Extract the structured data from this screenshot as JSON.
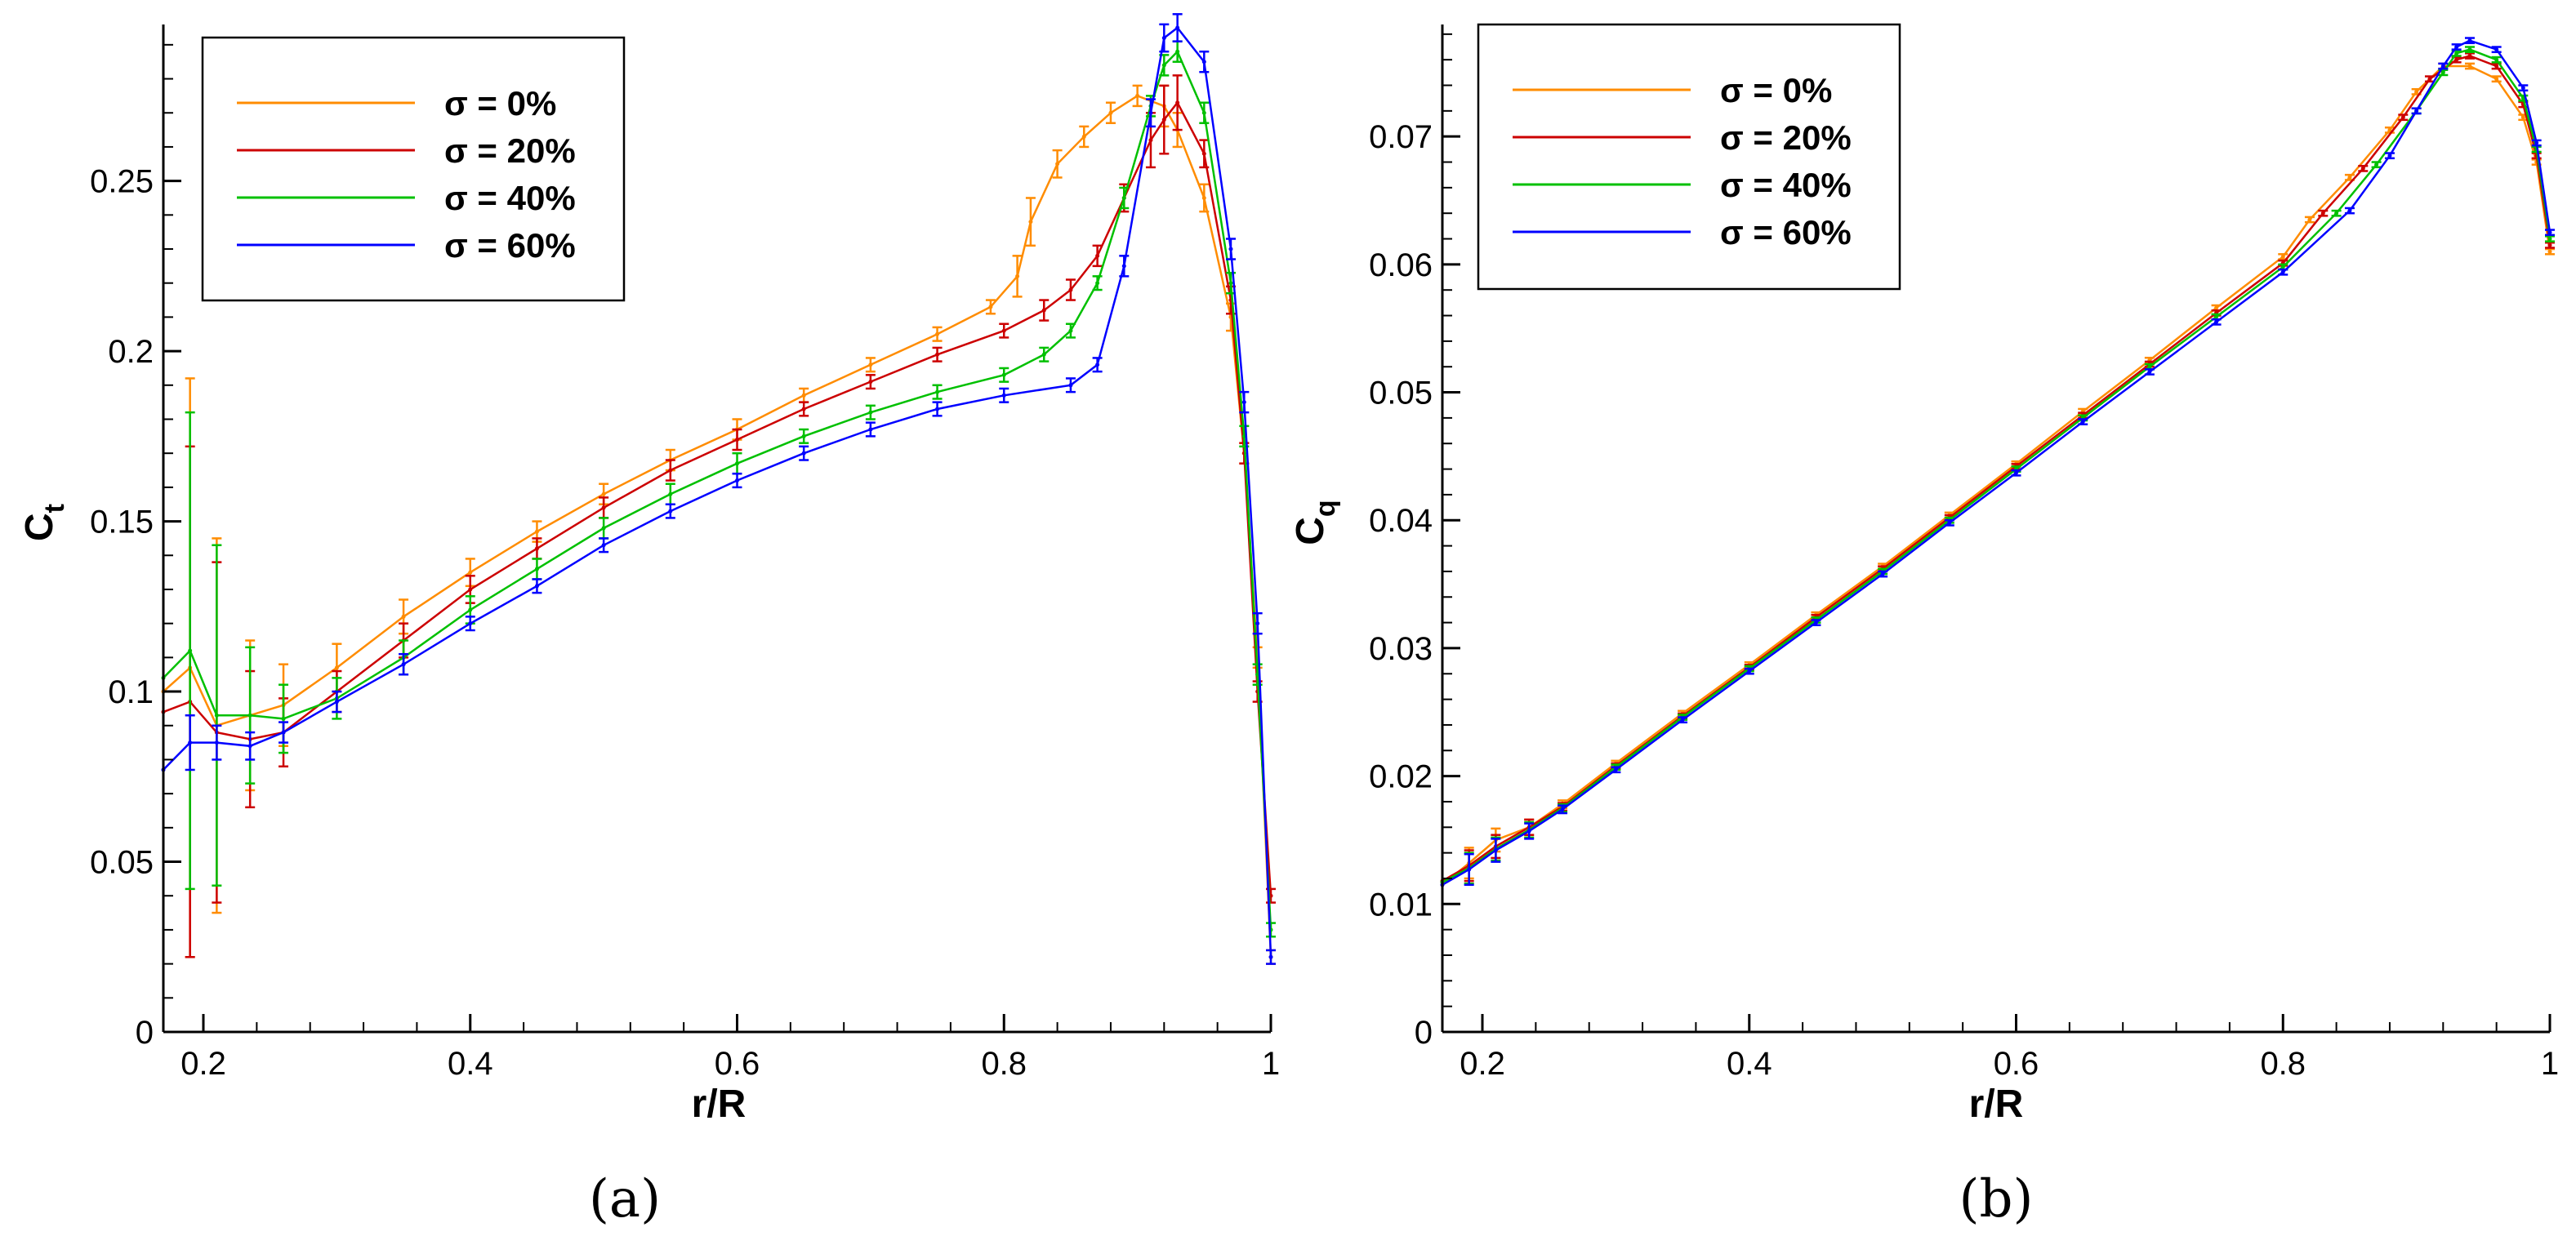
{
  "figure": {
    "panel_labels": [
      "(a)",
      "(b)"
    ]
  },
  "colors": {
    "s0": "#ff8c00",
    "s20": "#cc0000",
    "s40": "#00c000",
    "s60": "#0000ff"
  },
  "chart_data": [
    {
      "id": "a",
      "type": "line",
      "title": "",
      "panel_label": "(a)",
      "xlabel": "r/R",
      "ylabel": "C",
      "ylabel_sub": "t",
      "xlim": [
        0.17,
        1.0
      ],
      "ylim": [
        0,
        0.295
      ],
      "xticks": [
        0.2,
        0.4,
        0.6,
        0.8,
        1.0
      ],
      "xtick_labels": [
        "0.2",
        "0.4",
        "0.6",
        "0.8",
        "1"
      ],
      "yticks": [
        0,
        0.05,
        0.1,
        0.15,
        0.2,
        0.25
      ],
      "ytick_labels": [
        "0",
        "0.05",
        "0.1",
        "0.15",
        "0.2",
        "0.25"
      ],
      "error_bars": true,
      "legend": {
        "placement": "top-left",
        "entries": [
          "σ = 0%",
          "σ = 20%",
          "σ = 40%",
          "σ = 60%"
        ]
      },
      "series": [
        {
          "name": "σ = 0%",
          "color_key": "s0",
          "x": [
            0.17,
            0.19,
            0.21,
            0.235,
            0.26,
            0.3,
            0.35,
            0.4,
            0.45,
            0.5,
            0.55,
            0.6,
            0.65,
            0.7,
            0.75,
            0.79,
            0.81,
            0.82,
            0.84,
            0.86,
            0.88,
            0.9,
            0.92,
            0.93,
            0.95,
            0.97,
            0.98,
            0.99,
            1.0
          ],
          "y": [
            0.1,
            0.107,
            0.09,
            0.093,
            0.096,
            0.107,
            0.122,
            0.135,
            0.147,
            0.158,
            0.168,
            0.177,
            0.187,
            0.196,
            0.205,
            0.213,
            0.222,
            0.238,
            0.255,
            0.263,
            0.27,
            0.275,
            0.272,
            0.265,
            0.245,
            0.21,
            0.17,
            0.11,
            0.022
          ],
          "err": [
            0.0,
            0.085,
            0.055,
            0.022,
            0.012,
            0.007,
            0.005,
            0.004,
            0.003,
            0.003,
            0.003,
            0.003,
            0.002,
            0.002,
            0.002,
            0.002,
            0.006,
            0.007,
            0.004,
            0.003,
            0.003,
            0.003,
            0.006,
            0.005,
            0.004,
            0.004,
            0.003,
            0.003,
            0.002
          ]
        },
        {
          "name": "σ = 20%",
          "color_key": "s20",
          "x": [
            0.17,
            0.19,
            0.21,
            0.235,
            0.26,
            0.3,
            0.35,
            0.4,
            0.45,
            0.5,
            0.55,
            0.6,
            0.65,
            0.7,
            0.75,
            0.8,
            0.83,
            0.85,
            0.87,
            0.89,
            0.91,
            0.92,
            0.93,
            0.95,
            0.97,
            0.98,
            0.99,
            1.0
          ],
          "y": [
            0.094,
            0.097,
            0.088,
            0.086,
            0.088,
            0.1,
            0.115,
            0.13,
            0.142,
            0.154,
            0.165,
            0.174,
            0.183,
            0.191,
            0.199,
            0.206,
            0.212,
            0.218,
            0.228,
            0.245,
            0.262,
            0.268,
            0.273,
            0.258,
            0.215,
            0.17,
            0.1,
            0.04
          ],
          "err": [
            0.0,
            0.075,
            0.05,
            0.02,
            0.01,
            0.006,
            0.005,
            0.004,
            0.003,
            0.003,
            0.003,
            0.003,
            0.002,
            0.002,
            0.002,
            0.002,
            0.003,
            0.003,
            0.003,
            0.004,
            0.008,
            0.01,
            0.008,
            0.004,
            0.004,
            0.003,
            0.003,
            0.002
          ]
        },
        {
          "name": "σ = 40%",
          "color_key": "s40",
          "x": [
            0.17,
            0.19,
            0.21,
            0.235,
            0.26,
            0.3,
            0.35,
            0.4,
            0.45,
            0.5,
            0.55,
            0.6,
            0.65,
            0.7,
            0.75,
            0.8,
            0.83,
            0.85,
            0.87,
            0.89,
            0.91,
            0.92,
            0.93,
            0.95,
            0.97,
            0.98,
            0.99,
            1.0
          ],
          "y": [
            0.104,
            0.112,
            0.093,
            0.093,
            0.092,
            0.098,
            0.11,
            0.124,
            0.136,
            0.148,
            0.158,
            0.167,
            0.175,
            0.182,
            0.188,
            0.193,
            0.199,
            0.206,
            0.22,
            0.245,
            0.272,
            0.284,
            0.288,
            0.27,
            0.22,
            0.175,
            0.105,
            0.03
          ],
          "err": [
            0.0,
            0.07,
            0.05,
            0.02,
            0.01,
            0.006,
            0.005,
            0.004,
            0.003,
            0.003,
            0.003,
            0.003,
            0.002,
            0.002,
            0.002,
            0.002,
            0.002,
            0.002,
            0.002,
            0.003,
            0.003,
            0.003,
            0.003,
            0.003,
            0.003,
            0.003,
            0.003,
            0.002
          ]
        },
        {
          "name": "σ = 60%",
          "color_key": "s60",
          "x": [
            0.17,
            0.19,
            0.21,
            0.235,
            0.26,
            0.3,
            0.35,
            0.4,
            0.45,
            0.5,
            0.55,
            0.6,
            0.65,
            0.7,
            0.75,
            0.8,
            0.85,
            0.87,
            0.89,
            0.91,
            0.92,
            0.93,
            0.95,
            0.97,
            0.98,
            0.99,
            1.0
          ],
          "y": [
            0.077,
            0.085,
            0.085,
            0.084,
            0.088,
            0.097,
            0.108,
            0.12,
            0.131,
            0.143,
            0.153,
            0.162,
            0.17,
            0.177,
            0.183,
            0.187,
            0.19,
            0.196,
            0.225,
            0.27,
            0.292,
            0.295,
            0.285,
            0.23,
            0.185,
            0.12,
            0.022
          ],
          "err": [
            0.0,
            0.008,
            0.005,
            0.004,
            0.003,
            0.003,
            0.003,
            0.002,
            0.002,
            0.002,
            0.002,
            0.002,
            0.002,
            0.002,
            0.002,
            0.002,
            0.002,
            0.002,
            0.003,
            0.004,
            0.004,
            0.004,
            0.003,
            0.003,
            0.003,
            0.003,
            0.002
          ]
        }
      ]
    },
    {
      "id": "b",
      "type": "line",
      "title": "",
      "panel_label": "(b)",
      "xlabel": "r/R",
      "ylabel": "C",
      "ylabel_sub": "q",
      "xlim": [
        0.17,
        1.0
      ],
      "ylim": [
        0,
        0.0785
      ],
      "xticks": [
        0.2,
        0.4,
        0.6,
        0.8,
        1.0
      ],
      "xtick_labels": [
        "0.2",
        "0.4",
        "0.6",
        "0.8",
        "1"
      ],
      "yticks": [
        0,
        0.01,
        0.02,
        0.03,
        0.04,
        0.05,
        0.06,
        0.07
      ],
      "ytick_labels": [
        "0",
        "0.01",
        "0.02",
        "0.03",
        "0.04",
        "0.05",
        "0.06",
        "0.07"
      ],
      "error_bars": true,
      "legend": {
        "placement": "top-left",
        "entries": [
          "σ = 0%",
          "σ = 20%",
          "σ = 40%",
          "σ = 60%"
        ]
      },
      "series": [
        {
          "name": "σ = 0%",
          "color_key": "s0",
          "x": [
            0.17,
            0.19,
            0.21,
            0.235,
            0.26,
            0.3,
            0.35,
            0.4,
            0.45,
            0.5,
            0.55,
            0.6,
            0.65,
            0.7,
            0.75,
            0.8,
            0.82,
            0.85,
            0.88,
            0.9,
            0.92,
            0.94,
            0.96,
            0.98,
            0.99,
            1.0
          ],
          "y": [
            0.0115,
            0.0132,
            0.015,
            0.016,
            0.0178,
            0.021,
            0.0249,
            0.0287,
            0.0326,
            0.0364,
            0.0404,
            0.0444,
            0.0485,
            0.0525,
            0.0566,
            0.0606,
            0.0635,
            0.0668,
            0.0705,
            0.0735,
            0.0755,
            0.0755,
            0.0745,
            0.0715,
            0.068,
            0.061
          ],
          "err": [
            0.0,
            0.0012,
            0.0009,
            0.0006,
            0.0003,
            0.0002,
            0.0002,
            0.0002,
            0.0002,
            0.0002,
            0.0002,
            0.0002,
            0.0002,
            0.0002,
            0.0002,
            0.0002,
            0.0002,
            0.0002,
            0.0002,
            0.0002,
            0.0002,
            0.0002,
            0.0002,
            0.0002,
            0.0002,
            0.0002
          ]
        },
        {
          "name": "σ = 20%",
          "color_key": "s20",
          "x": [
            0.17,
            0.19,
            0.21,
            0.235,
            0.26,
            0.3,
            0.35,
            0.4,
            0.45,
            0.5,
            0.55,
            0.6,
            0.65,
            0.7,
            0.75,
            0.8,
            0.83,
            0.86,
            0.89,
            0.91,
            0.93,
            0.94,
            0.96,
            0.98,
            0.99,
            1.0
          ],
          "y": [
            0.0118,
            0.013,
            0.0145,
            0.016,
            0.0176,
            0.0208,
            0.0247,
            0.0285,
            0.0324,
            0.0362,
            0.0402,
            0.0442,
            0.0482,
            0.0522,
            0.0562,
            0.0601,
            0.064,
            0.0675,
            0.0715,
            0.0745,
            0.076,
            0.0763,
            0.0755,
            0.0725,
            0.0685,
            0.0615
          ],
          "err": [
            0.0,
            0.0012,
            0.0009,
            0.0006,
            0.0003,
            0.0002,
            0.0002,
            0.0002,
            0.0002,
            0.0002,
            0.0002,
            0.0002,
            0.0002,
            0.0002,
            0.0002,
            0.0002,
            0.0002,
            0.0002,
            0.0002,
            0.0002,
            0.0002,
            0.0002,
            0.0002,
            0.0002,
            0.0002,
            0.0002
          ]
        },
        {
          "name": "σ = 40%",
          "color_key": "s40",
          "x": [
            0.17,
            0.19,
            0.21,
            0.235,
            0.26,
            0.3,
            0.35,
            0.4,
            0.45,
            0.5,
            0.55,
            0.6,
            0.65,
            0.7,
            0.75,
            0.8,
            0.84,
            0.87,
            0.9,
            0.92,
            0.93,
            0.94,
            0.96,
            0.98,
            0.99,
            1.0
          ],
          "y": [
            0.0117,
            0.0128,
            0.0143,
            0.0158,
            0.0175,
            0.0207,
            0.0246,
            0.0284,
            0.0322,
            0.036,
            0.04,
            0.044,
            0.048,
            0.052,
            0.0559,
            0.0598,
            0.064,
            0.0678,
            0.072,
            0.075,
            0.0765,
            0.0768,
            0.076,
            0.073,
            0.069,
            0.062
          ],
          "err": [
            0.0,
            0.0012,
            0.0009,
            0.0006,
            0.0003,
            0.0002,
            0.0002,
            0.0002,
            0.0002,
            0.0002,
            0.0002,
            0.0002,
            0.0002,
            0.0002,
            0.0002,
            0.0002,
            0.0002,
            0.0002,
            0.0002,
            0.0002,
            0.0002,
            0.0002,
            0.0002,
            0.0002,
            0.0002,
            0.0002
          ]
        },
        {
          "name": "σ = 60%",
          "color_key": "s60",
          "x": [
            0.17,
            0.19,
            0.21,
            0.235,
            0.26,
            0.3,
            0.35,
            0.4,
            0.45,
            0.5,
            0.55,
            0.6,
            0.65,
            0.7,
            0.75,
            0.8,
            0.85,
            0.88,
            0.9,
            0.92,
            0.93,
            0.94,
            0.96,
            0.98,
            0.99,
            1.0
          ],
          "y": [
            0.0115,
            0.0127,
            0.0142,
            0.0157,
            0.0174,
            0.0205,
            0.0244,
            0.0282,
            0.032,
            0.0358,
            0.0398,
            0.0437,
            0.0477,
            0.0516,
            0.0555,
            0.0594,
            0.0642,
            0.0685,
            0.072,
            0.0755,
            0.077,
            0.0775,
            0.0768,
            0.0738,
            0.0695,
            0.0625
          ],
          "err": [
            0.0,
            0.0012,
            0.0009,
            0.0006,
            0.0003,
            0.0002,
            0.0002,
            0.0002,
            0.0002,
            0.0002,
            0.0002,
            0.0002,
            0.0002,
            0.0002,
            0.0002,
            0.0002,
            0.0002,
            0.0002,
            0.0002,
            0.0002,
            0.0002,
            0.0002,
            0.0002,
            0.0002,
            0.0002,
            0.0002
          ]
        }
      ]
    }
  ]
}
